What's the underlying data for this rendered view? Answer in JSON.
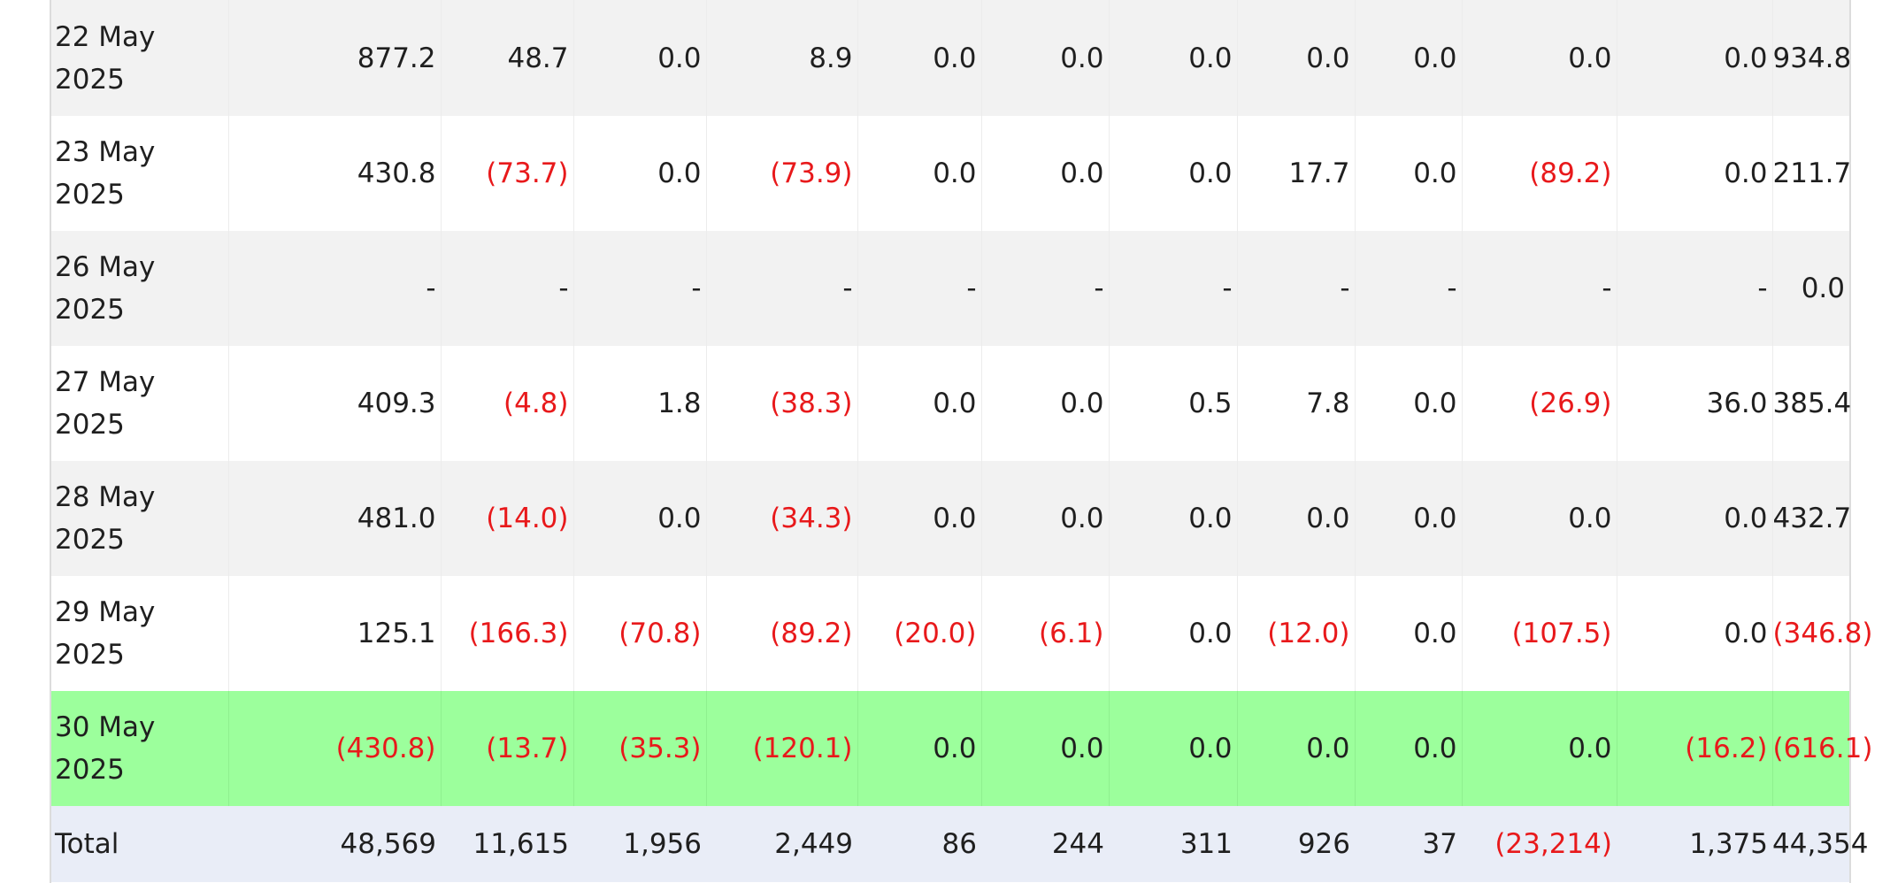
{
  "table": {
    "rows": [
      {
        "date": "22 May 2025",
        "style": "grey",
        "cells": [
          "877.2",
          "48.7",
          "0.0",
          "8.9",
          "0.0",
          "0.0",
          "0.0",
          "0.0",
          "0.0",
          "0.0",
          "0.0",
          "934.8"
        ]
      },
      {
        "date": "23 May 2025",
        "style": "white",
        "cells": [
          "430.8",
          "(73.7)",
          "0.0",
          "(73.9)",
          "0.0",
          "0.0",
          "0.0",
          "17.7",
          "0.0",
          "(89.2)",
          "0.0",
          "211.7"
        ]
      },
      {
        "date": "26 May 2025",
        "style": "grey",
        "cells": [
          "-",
          "-",
          "-",
          "-",
          "-",
          "-",
          "-",
          "-",
          "-",
          "-",
          "-",
          "0.0"
        ]
      },
      {
        "date": "27 May 2025",
        "style": "white",
        "cells": [
          "409.3",
          "(4.8)",
          "1.8",
          "(38.3)",
          "0.0",
          "0.0",
          "0.5",
          "7.8",
          "0.0",
          "(26.9)",
          "36.0",
          "385.4"
        ]
      },
      {
        "date": "28 May 2025",
        "style": "grey",
        "cells": [
          "481.0",
          "(14.0)",
          "0.0",
          "(34.3)",
          "0.0",
          "0.0",
          "0.0",
          "0.0",
          "0.0",
          "0.0",
          "0.0",
          "432.7"
        ]
      },
      {
        "date": "29 May 2025",
        "style": "white",
        "cells": [
          "125.1",
          "(166.3)",
          "(70.8)",
          "(89.2)",
          "(20.0)",
          "(6.1)",
          "0.0",
          "(12.0)",
          "0.0",
          "(107.5)",
          "0.0",
          "(346.8)"
        ]
      },
      {
        "date": "30 May 2025",
        "style": "highlight",
        "cells": [
          "(430.8)",
          "(13.7)",
          "(35.3)",
          "(120.1)",
          "0.0",
          "0.0",
          "0.0",
          "0.0",
          "0.0",
          "0.0",
          "(16.2)",
          "(616.1)"
        ]
      }
    ],
    "total": {
      "label": "Total",
      "cells": [
        "48,569",
        "11,615",
        "1,956",
        "2,449",
        "86",
        "244",
        "311",
        "926",
        "37",
        "(23,214)",
        "1,375",
        "44,354"
      ]
    }
  },
  "colors": {
    "negative": "#e8191b",
    "highlight_row": "#9cff9c",
    "alt_row": "#f2f2f2",
    "total_row": "#e9edf7"
  }
}
